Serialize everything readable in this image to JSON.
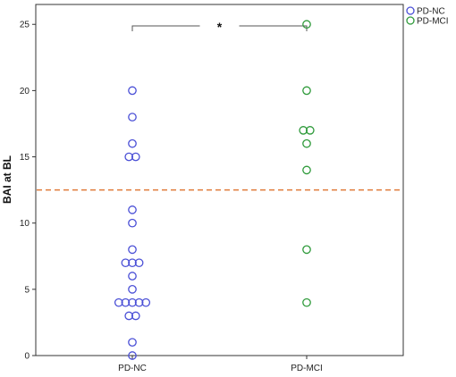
{
  "chart_data": {
    "type": "scatter",
    "title": "",
    "xlabel": "",
    "ylabel": "BAI at BL",
    "categories": [
      "PD-NC",
      "PD-MCI"
    ],
    "ylim": [
      0,
      26.5
    ],
    "yticks": [
      0,
      5,
      10,
      15,
      20,
      25
    ],
    "grid": false,
    "legend_position": "top-right",
    "series": [
      {
        "name": "PD-NC",
        "color": "#4a4fd6",
        "category": "PD-NC",
        "values": [
          20,
          18,
          16,
          15,
          15,
          11,
          10,
          8,
          7,
          7,
          7,
          6,
          5,
          4,
          4,
          4,
          4,
          4,
          3,
          3,
          1,
          0
        ]
      },
      {
        "name": "PD-MCI",
        "color": "#2e9a3a",
        "category": "PD-MCI",
        "values": [
          25,
          20,
          17,
          17,
          16,
          14,
          8,
          4
        ]
      }
    ],
    "reference_line": {
      "y": 12.5,
      "color": "#e07b39",
      "style": "dashed"
    },
    "significance": {
      "label": "*",
      "between": [
        "PD-NC",
        "PD-MCI"
      ]
    }
  }
}
